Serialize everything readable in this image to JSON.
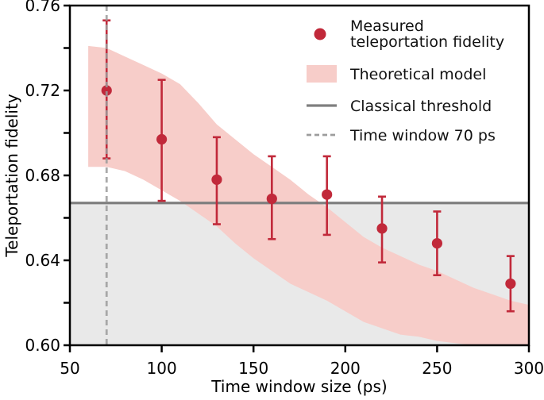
{
  "figure": {
    "type": "scientific-plot"
  },
  "legend": {
    "items": [
      {
        "marker": "circle-marker",
        "label_line1": "Measured",
        "label_line2": "teleportation fidelity"
      },
      {
        "marker": "band-patch",
        "label": "Theoretical model"
      },
      {
        "marker": "solid-line",
        "label": "Classical threshold"
      },
      {
        "marker": "dashed-line",
        "label": "Time window 70 ps"
      }
    ]
  },
  "chart_data": {
    "type": "scatter",
    "title": "",
    "xlabel": "Time window size (ps)",
    "ylabel": "Teleportation fidelity",
    "xlim": [
      50,
      300
    ],
    "ylim": [
      0.6,
      0.76
    ],
    "xticks": [
      50,
      100,
      150,
      200,
      250,
      300
    ],
    "xtick_labels": [
      "50",
      "100",
      "150",
      "200",
      "250",
      "300"
    ],
    "yticks_major": [
      0.6,
      0.64,
      0.68,
      0.72,
      0.76
    ],
    "ytick_labels": [
      "0.60",
      "0.64",
      "0.68",
      "0.72",
      "0.76"
    ],
    "yticks_minor": [
      0.62,
      0.66,
      0.7,
      0.74
    ],
    "grid": false,
    "legend_position": "upper right",
    "classical_threshold": 0.667,
    "time_window_ps": 70,
    "series": [
      {
        "name": "Measured teleportation fidelity",
        "x": [
          70,
          100,
          130,
          160,
          190,
          220,
          250,
          290
        ],
        "y": [
          0.72,
          0.697,
          0.678,
          0.669,
          0.671,
          0.655,
          0.648,
          0.629
        ],
        "y_err_top": [
          0.753,
          0.725,
          0.698,
          0.689,
          0.689,
          0.67,
          0.663,
          0.642
        ],
        "y_err_bottom": [
          0.688,
          0.668,
          0.657,
          0.65,
          0.652,
          0.639,
          0.633,
          0.616
        ]
      },
      {
        "name": "Theoretical model",
        "band_x": [
          60,
          70,
          80,
          90,
          100,
          110,
          120,
          130,
          140,
          150,
          160,
          170,
          180,
          190,
          200,
          210,
          220,
          230,
          240,
          250,
          260,
          270,
          280,
          290,
          300
        ],
        "band_upper": [
          0.741,
          0.74,
          0.736,
          0.732,
          0.728,
          0.723,
          0.714,
          0.704,
          0.697,
          0.69,
          0.684,
          0.678,
          0.671,
          0.665,
          0.658,
          0.651,
          0.646,
          0.642,
          0.638,
          0.635,
          0.631,
          0.627,
          0.624,
          0.621,
          0.619
        ],
        "band_lower": [
          0.684,
          0.684,
          0.682,
          0.678,
          0.673,
          0.668,
          0.662,
          0.656,
          0.648,
          0.641,
          0.635,
          0.629,
          0.625,
          0.621,
          0.616,
          0.611,
          0.608,
          0.605,
          0.604,
          0.602,
          0.601,
          0.6,
          0.6,
          0.6,
          0.6
        ]
      }
    ],
    "colors": {
      "point": "#c1293a",
      "band": "#f7cdc9",
      "threshold": "#7f7f7f",
      "dashed": "#9c9c9c",
      "below_threshold_fill": "#e9e9e9",
      "frame": "#000000"
    }
  }
}
